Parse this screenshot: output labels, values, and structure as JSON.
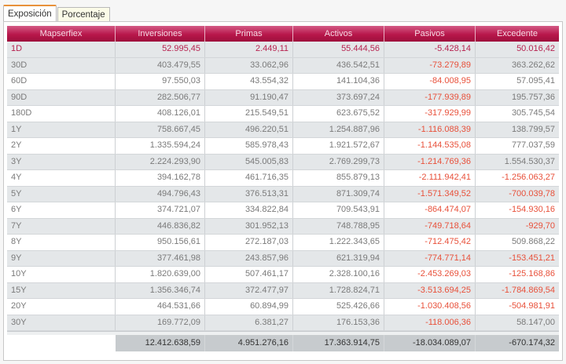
{
  "tabs": [
    {
      "label": "Exposición",
      "active": true
    },
    {
      "label": "Porcentaje",
      "active": false
    }
  ],
  "colors": {
    "header": "#b8174b",
    "header_text": "#f7dbe5",
    "negative": "#e8503a",
    "first_row_text": "#b7224f",
    "active_tab_accent": "#e8913a",
    "totals_bg": "#c7cbce"
  },
  "table": {
    "columns": [
      "Mapserfiex",
      "Inversiones",
      "Primas",
      "Activos",
      "Pasivos",
      "Excedente"
    ],
    "rows": [
      [
        "1D",
        "52.995,45",
        "2.449,11",
        "55.444,56",
        "-5.428,14",
        "50.016,42"
      ],
      [
        "30D",
        "403.479,55",
        "33.062,96",
        "436.542,51",
        "-73.279,89",
        "363.262,62"
      ],
      [
        "60D",
        "97.550,03",
        "43.554,32",
        "141.104,36",
        "-84.008,95",
        "57.095,41"
      ],
      [
        "90D",
        "282.506,77",
        "91.190,47",
        "373.697,24",
        "-177.939,89",
        "195.757,36"
      ],
      [
        "180D",
        "408.126,01",
        "215.549,51",
        "623.675,52",
        "-317.929,99",
        "305.745,54"
      ],
      [
        "1Y",
        "758.667,45",
        "496.220,51",
        "1.254.887,96",
        "-1.116.088,39",
        "138.799,57"
      ],
      [
        "2Y",
        "1.335.594,24",
        "585.978,43",
        "1.921.572,67",
        "-1.144.535,08",
        "777.037,59"
      ],
      [
        "3Y",
        "2.224.293,90",
        "545.005,83",
        "2.769.299,73",
        "-1.214.769,36",
        "1.554.530,37"
      ],
      [
        "4Y",
        "394.162,78",
        "461.716,35",
        "855.879,13",
        "-2.111.942,41",
        "-1.256.063,27"
      ],
      [
        "5Y",
        "494.796,43",
        "376.513,31",
        "871.309,74",
        "-1.571.349,52",
        "-700.039,78"
      ],
      [
        "6Y",
        "374.721,07",
        "334.822,84",
        "709.543,91",
        "-864.474,07",
        "-154.930,16"
      ],
      [
        "7Y",
        "446.836,82",
        "301.952,13",
        "748.788,95",
        "-749.718,64",
        "-929,70"
      ],
      [
        "8Y",
        "950.156,61",
        "272.187,03",
        "1.222.343,65",
        "-712.475,42",
        "509.868,22"
      ],
      [
        "9Y",
        "377.461,98",
        "243.857,96",
        "621.319,94",
        "-774.771,14",
        "-153.451,21"
      ],
      [
        "10Y",
        "1.820.639,00",
        "507.461,17",
        "2.328.100,16",
        "-2.453.269,03",
        "-125.168,86"
      ],
      [
        "15Y",
        "1.356.346,74",
        "372.477,97",
        "1.728.824,71",
        "-3.513.694,25",
        "-1.784.869,54"
      ],
      [
        "20Y",
        "464.531,66",
        "60.894,99",
        "525.426,66",
        "-1.030.408,56",
        "-504.981,91"
      ],
      [
        "30Y",
        "169.772,09",
        "6.381,27",
        "176.153,36",
        "-118.006,36",
        "58.147,00"
      ]
    ],
    "totals": [
      "12.412.638,59",
      "4.951.276,16",
      "17.363.914,75",
      "-18.034.089,07",
      "-670.174,32"
    ]
  }
}
